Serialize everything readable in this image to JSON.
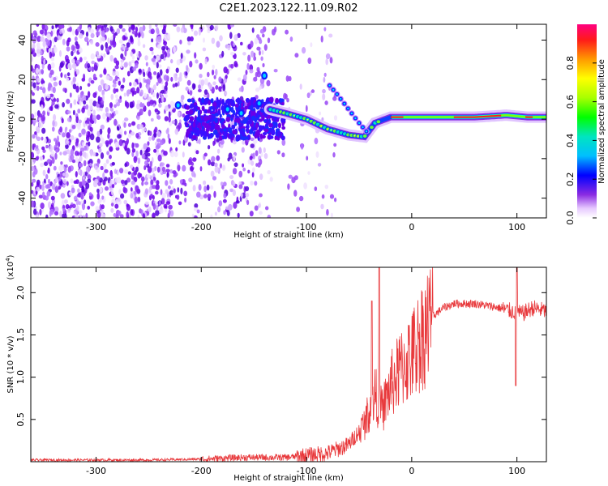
{
  "title": "C2E1.2023.122.11.09.R02",
  "chart_data": [
    {
      "type": "heatmap",
      "xlabel": "Height of straight line (km)",
      "ylabel": "Frequency (Hz)",
      "xlim": [
        -362,
        128
      ],
      "ylim": [
        -50,
        48
      ],
      "xticks": [
        -300,
        -200,
        -100,
        0,
        100
      ],
      "yticks": [
        -40,
        -20,
        0,
        20,
        40
      ],
      "colorbar": {
        "label": "Normalized spectral amplitude",
        "range": [
          0,
          1
        ],
        "ticks": [
          0.0,
          0.2,
          0.4,
          0.6,
          0.8
        ]
      },
      "features": {
        "main_trace": {
          "x": [
            -135,
            -120,
            -100,
            -80,
            -60,
            -45,
            -35,
            -20,
            0,
            30,
            60,
            90,
            110,
            128
          ],
          "y": [
            5,
            3,
            0,
            -5,
            -8,
            -9,
            -2,
            1,
            1,
            1,
            1,
            2,
            1,
            1
          ]
        },
        "upper_branch": {
          "x": [
            -78,
            -70,
            -60,
            -50,
            -40
          ],
          "y": [
            17,
            12,
            5,
            -2,
            -8
          ]
        }
      }
    },
    {
      "type": "line",
      "xlabel": "Height of straight line (km)",
      "ylabel": "SNR (10 * v/v)",
      "yscale_label": "(x10",
      "yscale_exp": "4",
      "yscale_close": ")",
      "xlim": [
        -362,
        128
      ],
      "ylim": [
        0,
        2.3
      ],
      "xticks": [
        -300,
        -200,
        -100,
        0,
        100
      ],
      "yticks": [
        0.5,
        1.0,
        1.5,
        2.0
      ],
      "color": "#e8383b",
      "envelope": {
        "x": [
          -362,
          -250,
          -200,
          -160,
          -120,
          -100,
          -80,
          -60,
          -45,
          -35,
          -28,
          -20,
          -10,
          0,
          10,
          20,
          30,
          40,
          60,
          80,
          95,
          105,
          115,
          128
        ],
        "y": [
          0.02,
          0.02,
          0.03,
          0.05,
          0.05,
          0.07,
          0.1,
          0.2,
          0.45,
          0.8,
          0.6,
          0.9,
          1.1,
          1.25,
          1.5,
          1.72,
          1.82,
          1.87,
          1.87,
          1.83,
          1.78,
          1.75,
          1.82,
          1.78
        ]
      },
      "peaks": [
        {
          "x": -31,
          "y": 2.3
        },
        {
          "x": -38,
          "y": 1.9
        },
        {
          "x": 100,
          "y": 2.3
        },
        {
          "x": 99,
          "y": 0.9
        }
      ]
    }
  ]
}
